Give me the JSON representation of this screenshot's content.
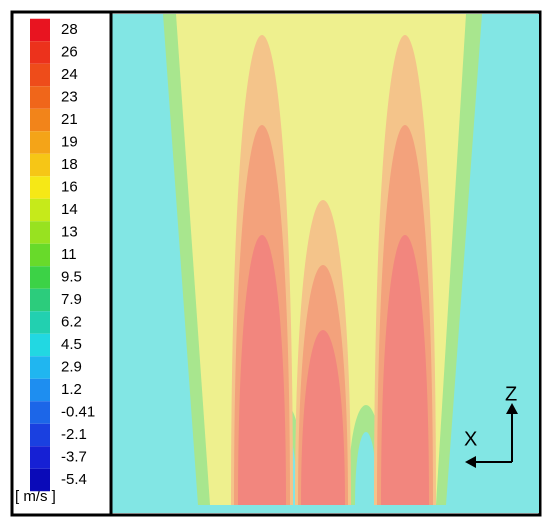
{
  "chart_data": {
    "type": "contour",
    "colorbar": {
      "ticks": [
        28,
        26,
        24,
        23,
        21,
        19,
        18,
        16,
        14,
        13,
        11,
        9.5,
        7.9,
        6.2,
        4.5,
        2.9,
        1.2,
        -0.41,
        -2.1,
        -3.7,
        -5.4
      ],
      "colors": [
        "#e81420",
        "#ec321c",
        "#ee4c1a",
        "#f0661a",
        "#f2841a",
        "#f4a418",
        "#f6c616",
        "#f6e816",
        "#c6ea1a",
        "#98e220",
        "#68da2a",
        "#3cd246",
        "#2ccc7c",
        "#22d0b0",
        "#22d8e2",
        "#20b6f0",
        "#1e8ef0",
        "#1c66e8",
        "#1a40e0",
        "#1620d4",
        "#0a0ab8"
      ],
      "unit": "[ m/s ]"
    },
    "x_label": "X",
    "z_label": "Z"
  }
}
